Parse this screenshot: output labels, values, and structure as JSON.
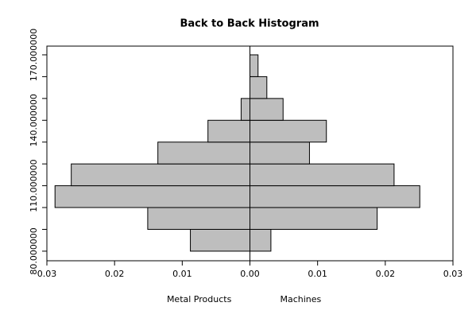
{
  "chart_data": {
    "type": "back-to-back-histogram",
    "title": "Back to Back Histogram",
    "bins": [
      80,
      90,
      100,
      110,
      120,
      130,
      140,
      150,
      160,
      170
    ],
    "series": [
      {
        "name": "Metal Products",
        "color": "#bebebe",
        "side": "left",
        "values": [
          0.0088,
          0.0151,
          0.0288,
          0.0264,
          0.0136,
          0.0062,
          0.0013,
          0,
          0
        ]
      },
      {
        "name": "Machines",
        "color": "#bebebe",
        "side": "right",
        "values": [
          0.0031,
          0.0188,
          0.0251,
          0.0213,
          0.0088,
          0.0113,
          0.0049,
          0.0025,
          0.0012
        ]
      }
    ],
    "xlim": [
      -0.03,
      0.03
    ],
    "xticks": [
      {
        "value": -0.03,
        "label": "0.03"
      },
      {
        "value": -0.02,
        "label": "0.02"
      },
      {
        "value": -0.01,
        "label": "0.01"
      },
      {
        "value": 0,
        "label": "0.00"
      },
      {
        "value": 0.01,
        "label": "0.01"
      },
      {
        "value": 0.02,
        "label": "0.02"
      },
      {
        "value": 0.03,
        "label": "0.03"
      }
    ],
    "ylim": [
      75.6,
      174
    ],
    "yticks": [
      {
        "value": 80,
        "label": "80.000000"
      },
      {
        "value": 90,
        "label": null
      },
      {
        "value": 100,
        "label": null
      },
      {
        "value": 110,
        "label": "110.000000"
      },
      {
        "value": 120,
        "label": null
      },
      {
        "value": 130,
        "label": null
      },
      {
        "value": 140,
        "label": "140.000000"
      },
      {
        "value": 150,
        "label": null
      },
      {
        "value": 160,
        "label": null
      },
      {
        "value": 170,
        "label": "170.000000"
      }
    ]
  }
}
